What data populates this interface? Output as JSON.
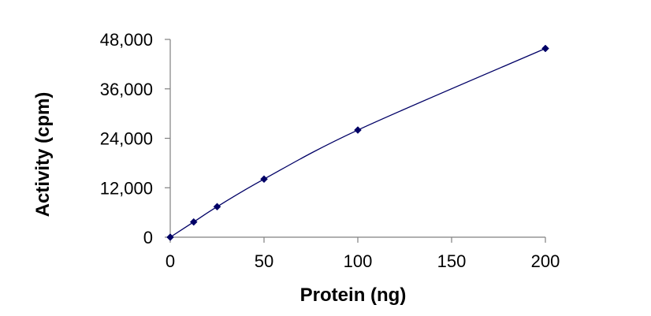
{
  "chart_data": {
    "type": "scatter",
    "title": "",
    "xlabel": "Protein (ng)",
    "ylabel": "Activity (cpm)",
    "xlim": [
      0,
      200
    ],
    "ylim": [
      0,
      48000
    ],
    "x_ticks": [
      0,
      50,
      100,
      150,
      200
    ],
    "x_tick_labels": [
      "0",
      "50",
      "100",
      "150",
      "200"
    ],
    "y_ticks": [
      0,
      12000,
      24000,
      36000,
      48000
    ],
    "y_tick_labels": [
      "0",
      "12,000",
      "24,000",
      "36,000",
      "48,000"
    ],
    "grid": false,
    "legend": "none",
    "series": [
      {
        "name": "Activity",
        "x": [
          0,
          12.5,
          25,
          50,
          100,
          200
        ],
        "y": [
          0,
          3700,
          7400,
          14100,
          26000,
          45800
        ],
        "color": "#000066",
        "marker": "diamond",
        "trendline": true
      }
    ]
  }
}
